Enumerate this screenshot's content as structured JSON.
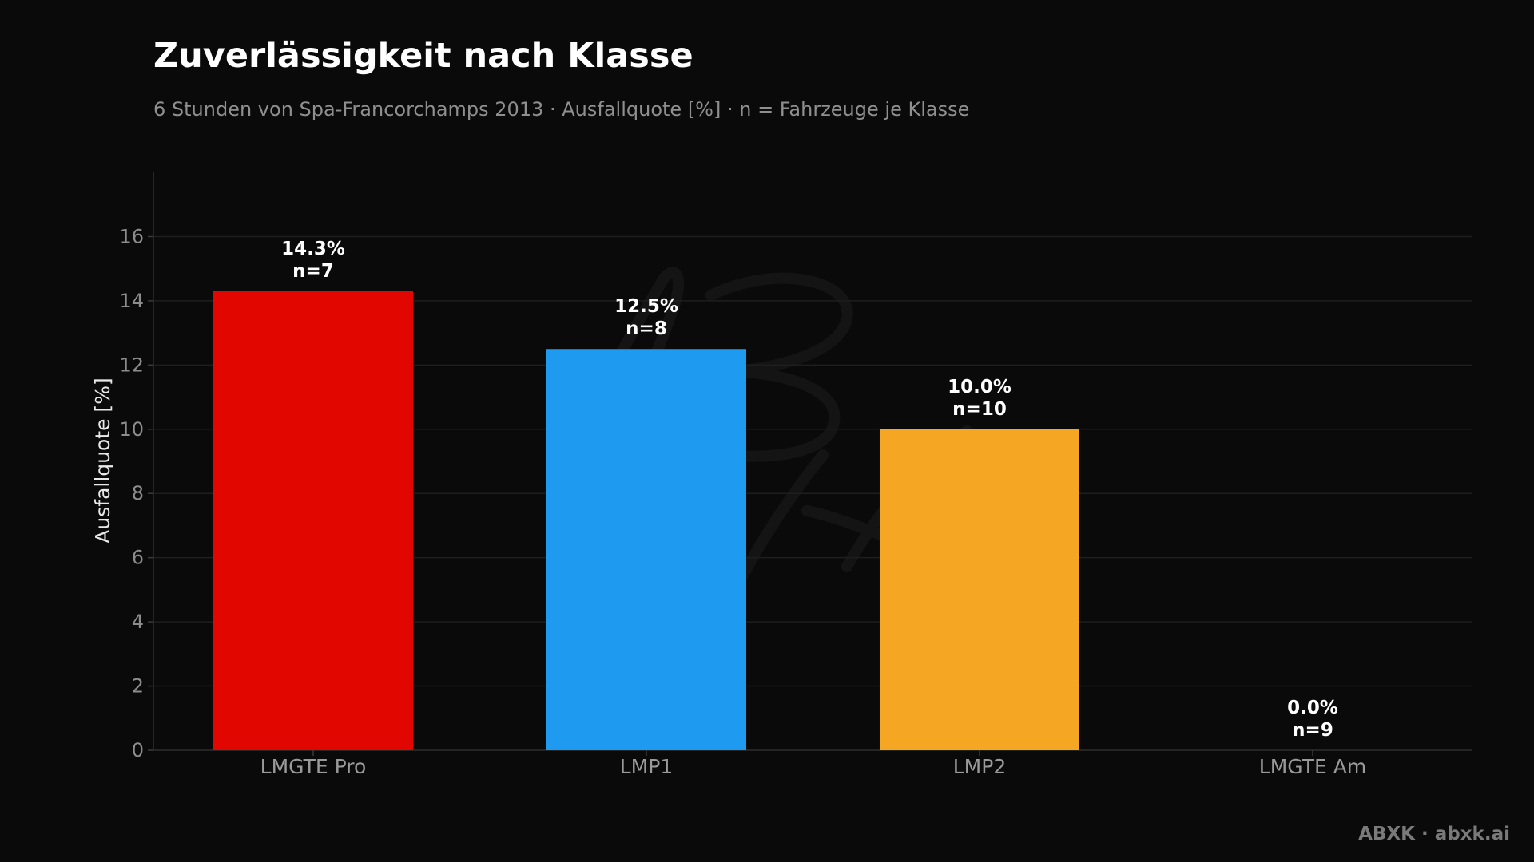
{
  "chart_data": {
    "type": "bar",
    "title": "Zuverlässigkeit nach Klasse",
    "subtitle": "6 Stunden von Spa-Francorchamps 2013 · Ausfallquote [%] · n = Fahrzeuge je Klasse",
    "xlabel": "",
    "ylabel": "Ausfallquote [%]",
    "ylim": [
      0,
      18
    ],
    "yticks": [
      0,
      2,
      4,
      6,
      8,
      10,
      12,
      14,
      16
    ],
    "grid": true,
    "categories": [
      "LMGTE Pro",
      "LMP1",
      "LMP2",
      "LMGTE Am"
    ],
    "values": [
      14.3,
      12.5,
      10.0,
      0.0
    ],
    "counts": [
      7,
      8,
      10,
      9
    ],
    "value_labels": [
      "14.3%",
      "12.5%",
      "10.0%",
      "0.0%"
    ],
    "count_labels": [
      "n=7",
      "n=8",
      "n=10",
      "n=9"
    ],
    "colors": [
      "#e10600",
      "#1e9bf0",
      "#f5a623",
      "#8c8c8c"
    ]
  },
  "branding": {
    "credit": "ABXK · abxk.ai"
  }
}
